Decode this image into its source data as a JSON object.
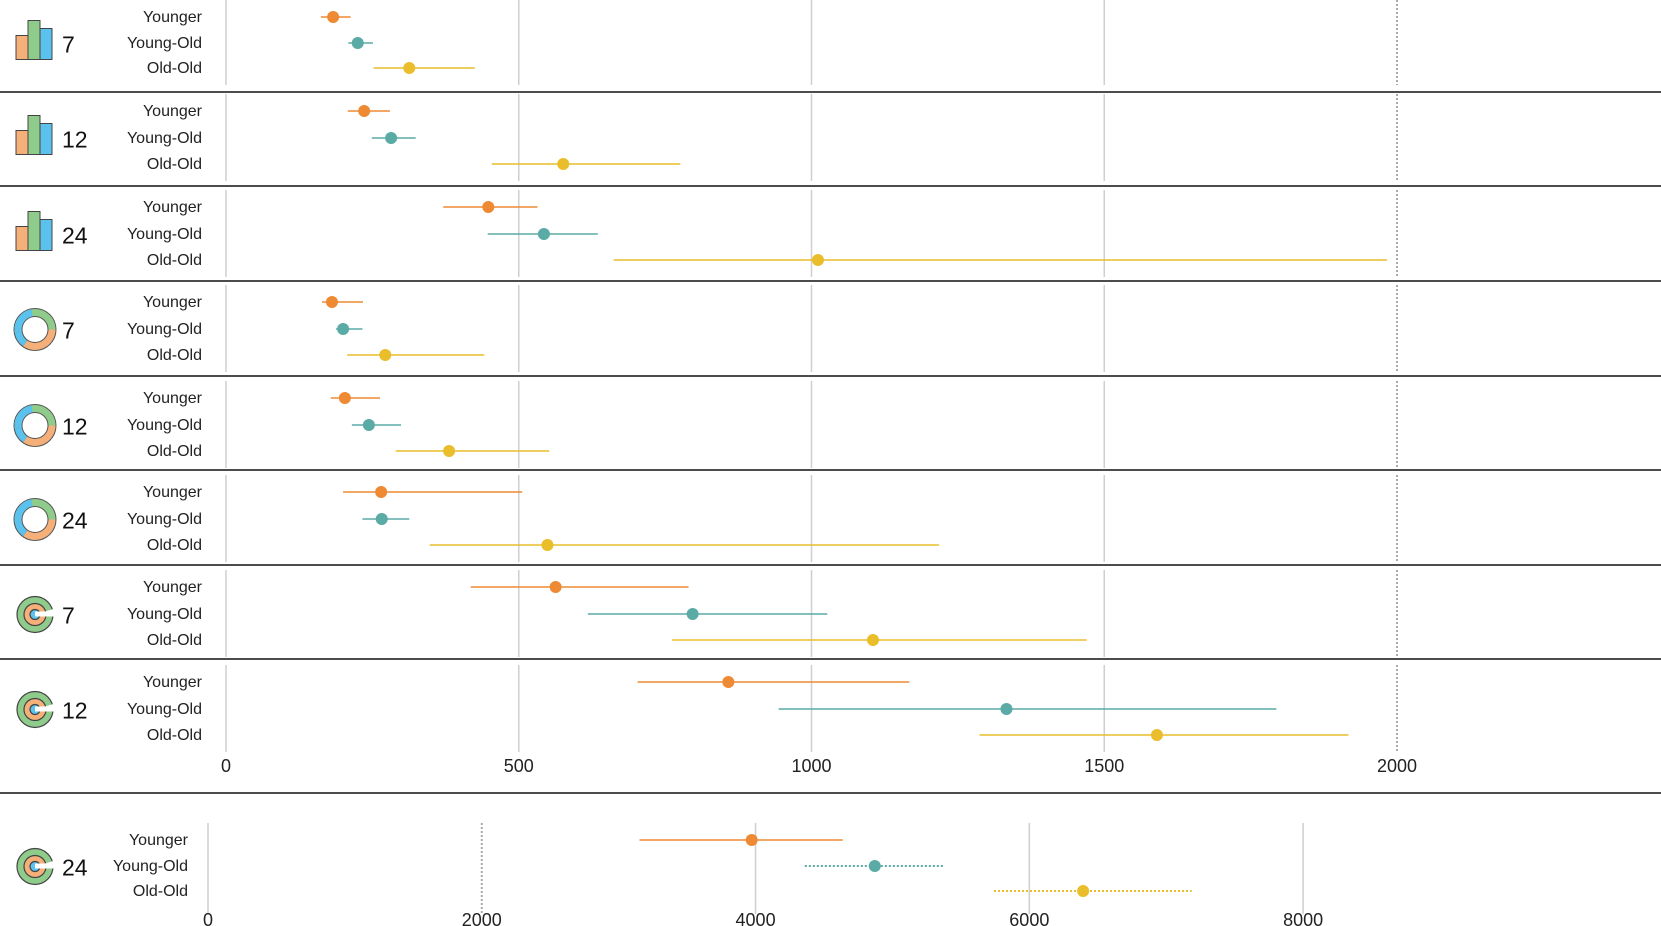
{
  "chart_data": [
    {
      "type": "scatter",
      "chart_kind": "dot-and-interval",
      "icon": "bar-chart-icon",
      "count": "7",
      "x_range": [
        0,
        2000
      ],
      "categories": [
        "Younger",
        "Young-Old",
        "Old-Old"
      ],
      "points": [
        {
          "value": 183,
          "low": 162,
          "high": 213
        },
        {
          "value": 225,
          "low": 209,
          "high": 251
        },
        {
          "value": 313,
          "low": 252,
          "high": 425
        }
      ]
    },
    {
      "type": "scatter",
      "chart_kind": "dot-and-interval",
      "icon": "bar-chart-icon",
      "count": "12",
      "x_range": [
        0,
        2000
      ],
      "categories": [
        "Younger",
        "Young-Old",
        "Old-Old"
      ],
      "points": [
        {
          "value": 236,
          "low": 208,
          "high": 280
        },
        {
          "value": 282,
          "low": 249,
          "high": 324
        },
        {
          "value": 576,
          "low": 454,
          "high": 776
        }
      ]
    },
    {
      "type": "scatter",
      "chart_kind": "dot-and-interval",
      "icon": "bar-chart-icon",
      "count": "24",
      "x_range": [
        0,
        2000
      ],
      "categories": [
        "Younger",
        "Young-Old",
        "Old-Old"
      ],
      "points": [
        {
          "value": 448,
          "low": 371,
          "high": 532
        },
        {
          "value": 543,
          "low": 447,
          "high": 635
        },
        {
          "value": 1011,
          "low": 662,
          "high": 1983
        }
      ]
    },
    {
      "type": "scatter",
      "chart_kind": "dot-and-interval",
      "icon": "donut-chart-icon",
      "count": "7",
      "x_range": [
        0,
        2000
      ],
      "categories": [
        "Younger",
        "Young-Old",
        "Old-Old"
      ],
      "points": [
        {
          "value": 181,
          "low": 164,
          "high": 234
        },
        {
          "value": 200,
          "low": 188,
          "high": 233
        },
        {
          "value": 272,
          "low": 207,
          "high": 441
        }
      ]
    },
    {
      "type": "scatter",
      "chart_kind": "dot-and-interval",
      "icon": "donut-chart-icon",
      "count": "12",
      "x_range": [
        0,
        2000
      ],
      "categories": [
        "Younger",
        "Young-Old",
        "Old-Old"
      ],
      "points": [
        {
          "value": 203,
          "low": 179,
          "high": 263
        },
        {
          "value": 244,
          "low": 215,
          "high": 299
        },
        {
          "value": 381,
          "low": 290,
          "high": 552
        }
      ]
    },
    {
      "type": "scatter",
      "chart_kind": "dot-and-interval",
      "icon": "donut-chart-icon",
      "count": "24",
      "x_range": [
        0,
        2000
      ],
      "categories": [
        "Younger",
        "Young-Old",
        "Old-Old"
      ],
      "points": [
        {
          "value": 265,
          "low": 200,
          "high": 506
        },
        {
          "value": 266,
          "low": 233,
          "high": 313
        },
        {
          "value": 549,
          "low": 348,
          "high": 1218
        }
      ]
    },
    {
      "type": "scatter",
      "chart_kind": "dot-and-interval",
      "icon": "radial-bar-icon",
      "count": "7",
      "x_range": [
        0,
        2000
      ],
      "categories": [
        "Younger",
        "Young-Old",
        "Old-Old"
      ],
      "points": [
        {
          "value": 563,
          "low": 418,
          "high": 790
        },
        {
          "value": 797,
          "low": 618,
          "high": 1027
        },
        {
          "value": 1105,
          "low": 762,
          "high": 1470
        }
      ]
    },
    {
      "type": "scatter",
      "chart_kind": "dot-and-interval",
      "icon": "radial-bar-icon",
      "count": "12",
      "x_range": [
        0,
        2000
      ],
      "categories": [
        "Younger",
        "Young-Old",
        "Old-Old"
      ],
      "points": [
        {
          "value": 858,
          "low": 703,
          "high": 1167
        },
        {
          "value": 1333,
          "low": 944,
          "high": 1794
        },
        {
          "value": 1590,
          "low": 1287,
          "high": 1917
        }
      ],
      "x_ticks": [
        "0",
        "500",
        "1000",
        "1500",
        "2000"
      ],
      "x_ticks_values": [
        0,
        500,
        1000,
        1500,
        2000
      ]
    },
    {
      "type": "scatter",
      "chart_kind": "dot-and-interval",
      "icon": "radial-bar-icon",
      "count": "24",
      "x_range": [
        0,
        9000
      ],
      "categories": [
        "Younger",
        "Young-Old",
        "Old-Old"
      ],
      "points": [
        {
          "value": 3972,
          "low": 3152,
          "high": 4637,
          "style": "solid"
        },
        {
          "value": 4871,
          "low": 4360,
          "high": 5374,
          "style": "dotted"
        },
        {
          "value": 6393,
          "low": 5742,
          "high": 7186,
          "style": "dotted"
        }
      ],
      "x_ticks": [
        "0",
        "2000",
        "4000",
        "6000",
        "8000"
      ],
      "x_ticks_values": [
        0,
        2000,
        4000,
        6000,
        8000
      ]
    }
  ],
  "colors": {
    "Younger": "#EE8A34",
    "Young-Old": "#5AAAA5",
    "Old-Old": "#E9BE2A",
    "grid": "#cfcfcf",
    "separator": "#111111",
    "icon_orange": "#F5B07A",
    "icon_green": "#8FCB8A",
    "icon_blue": "#5BC2EE"
  }
}
